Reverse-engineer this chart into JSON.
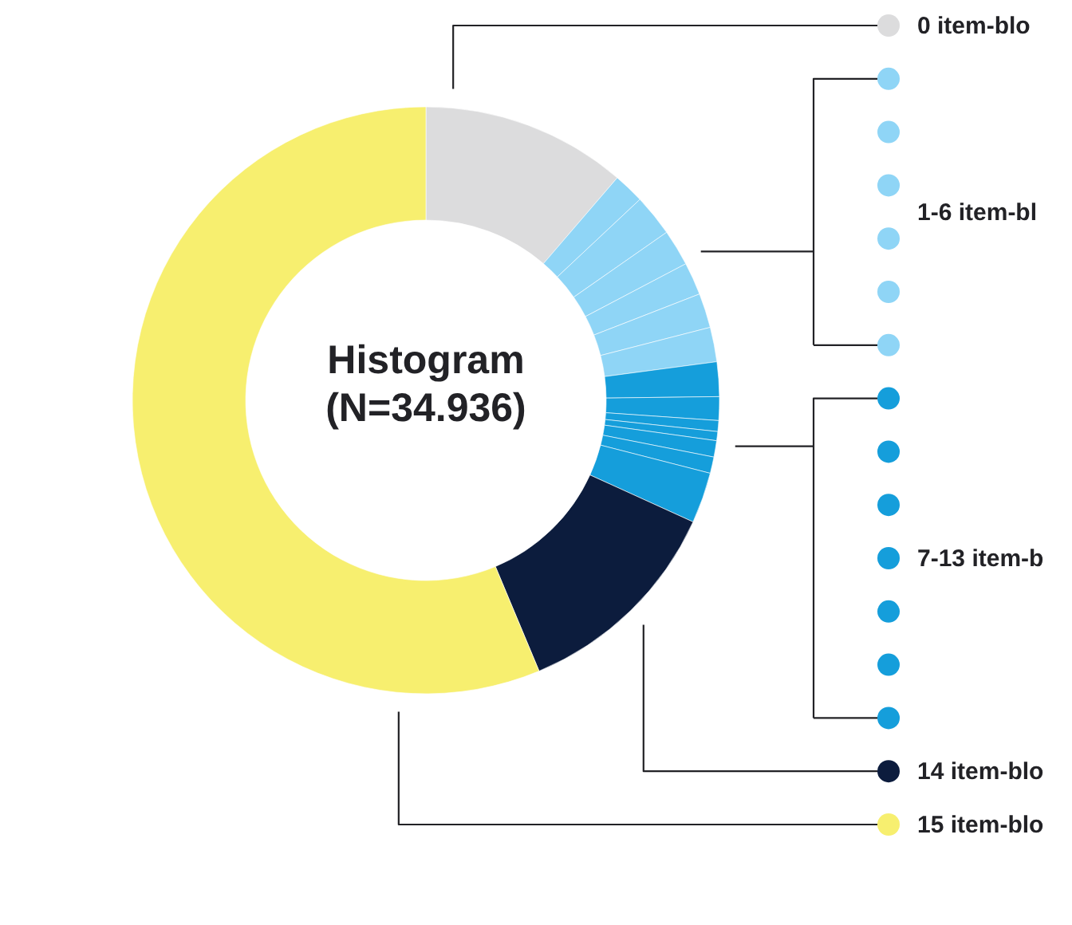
{
  "chart_data": {
    "type": "donut",
    "title": "Histogram",
    "subtitle": "(N=34.936)",
    "categories": [
      "0 item-blo",
      null,
      null,
      null,
      null,
      null,
      null,
      null,
      null,
      null,
      null,
      null,
      null,
      null,
      "14 item-blo",
      "15 item-blo"
    ],
    "values": [
      11.3,
      1.7,
      2.3,
      2.0,
      1.8,
      1.9,
      1.9,
      1.9,
      1.3,
      0.6,
      0.5,
      0.9,
      0.9,
      2.8,
      11.9,
      56.3
    ],
    "colors": [
      "#dcdcdd",
      "#8fd5f6",
      "#8fd5f6",
      "#8fd5f6",
      "#8fd5f6",
      "#8fd5f6",
      "#8fd5f6",
      "#159edb",
      "#159edb",
      "#159edb",
      "#159edb",
      "#159edb",
      "#159edb",
      "#159edb",
      "#0c1c3d",
      "#f7ef6f"
    ],
    "annotations": [
      "1-6 item-bl",
      "7-13 item-b"
    ],
    "legend": "right"
  }
}
